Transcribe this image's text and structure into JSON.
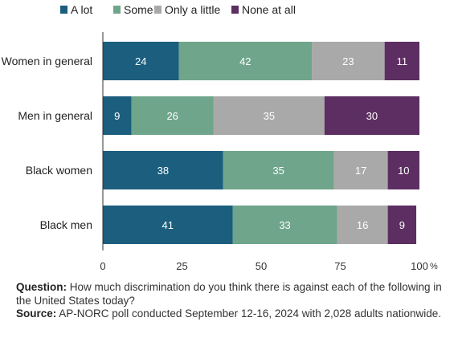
{
  "chart_data": {
    "type": "bar",
    "orientation": "horizontal",
    "stacked": true,
    "categories": [
      "Women in general",
      "Men in general",
      "Black women",
      "Black men"
    ],
    "series": [
      {
        "name": "A lot",
        "color": "#1b5e7e",
        "values": [
          24,
          9,
          38,
          41
        ]
      },
      {
        "name": "Some",
        "color": "#6fa58b",
        "values": [
          42,
          26,
          35,
          33
        ]
      },
      {
        "name": "Only a little",
        "color": "#a9a9a9",
        "values": [
          23,
          35,
          17,
          16
        ]
      },
      {
        "name": "None at all",
        "color": "#5d2e62",
        "values": [
          11,
          30,
          10,
          9
        ]
      }
    ],
    "x_ticks": [
      "0",
      "25",
      "50",
      "75",
      "100"
    ],
    "x_unit": "%",
    "xlim": [
      0,
      100
    ],
    "legend_position": "top-left",
    "grid": false
  },
  "notes": {
    "question_label": "Question:",
    "question_text": "How much discrimination do you think there is against each of the following in the United States today?",
    "source_label": "Source:",
    "source_text": "AP-NORC poll conducted September 12-16, 2024 with 2,028 adults nationwide."
  }
}
